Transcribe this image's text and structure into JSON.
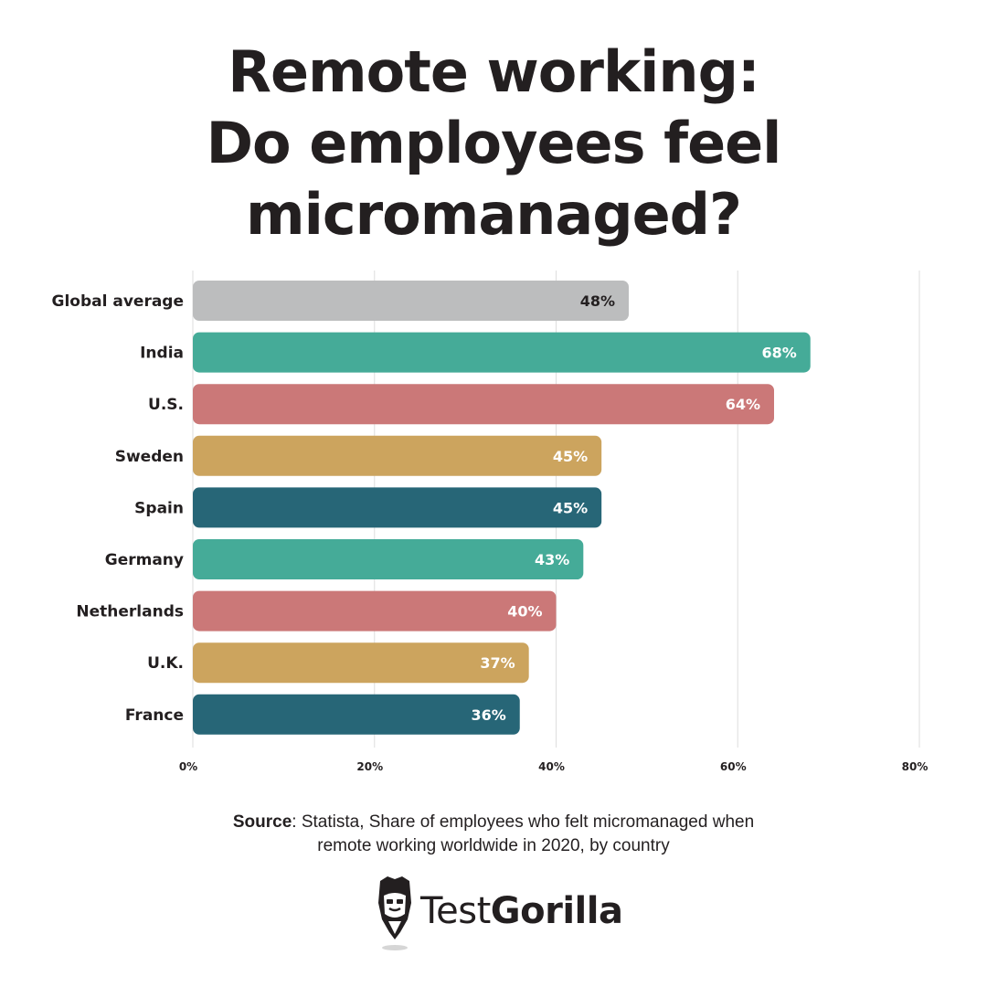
{
  "title": {
    "line1": "Remote working:",
    "line2": "Do employees feel",
    "line3": "micromanaged?"
  },
  "chart_data": {
    "type": "bar",
    "orientation": "horizontal",
    "categories": [
      "Global average",
      "India",
      "U.S.",
      "Sweden",
      "Spain",
      "Germany",
      "Netherlands",
      "U.K.",
      "France"
    ],
    "values": [
      48,
      68,
      64,
      45,
      45,
      43,
      40,
      37,
      36
    ],
    "value_labels": [
      "48%",
      "68%",
      "64%",
      "45%",
      "45%",
      "43%",
      "40%",
      "37%",
      "36%"
    ],
    "colors": [
      "#bcbdbe",
      "#45ab98",
      "#cb7878",
      "#cca45e",
      "#276677",
      "#45ab98",
      "#cb7878",
      "#cca45e",
      "#276677"
    ],
    "value_label_colors": [
      "#231f20",
      "#ffffff",
      "#ffffff",
      "#ffffff",
      "#ffffff",
      "#ffffff",
      "#ffffff",
      "#ffffff",
      "#ffffff"
    ],
    "xlim": [
      0,
      80
    ],
    "ticks": [
      0,
      20,
      40,
      60,
      80
    ],
    "tick_labels": [
      "0%",
      "20%",
      "40%",
      "60%",
      "80%"
    ],
    "grid": true,
    "title": "",
    "xlabel": "",
    "ylabel": ""
  },
  "source": {
    "label": "Source",
    "line1_rest": ": Statista, Share of employees who felt micromanaged when",
    "line2": "remote working worldwide in 2020, by country"
  },
  "logo": {
    "icon": "gorilla-icon",
    "text_light": "Test",
    "text_bold": "Gorilla"
  }
}
